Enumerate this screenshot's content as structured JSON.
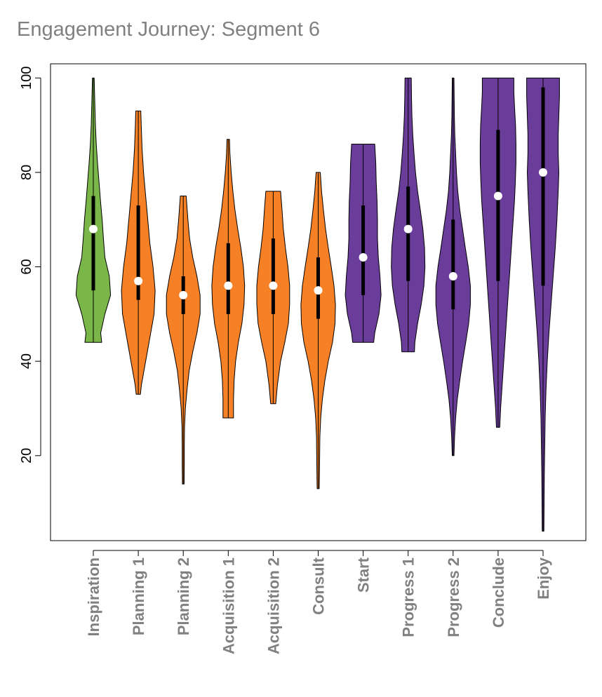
{
  "chart_data": {
    "type": "violin",
    "title": "Engagement Journey: Segment 6",
    "xlabel": "",
    "ylabel": "",
    "ylim": [
      2,
      103
    ],
    "yticks": [
      20,
      40,
      60,
      80,
      100
    ],
    "series": [
      {
        "name": "Inspiration",
        "color": "#7AB648",
        "min": 44,
        "q1": 55,
        "median": 68,
        "q3": 75,
        "max": 100,
        "density": [
          [
            44,
            0.4
          ],
          [
            46,
            0.35
          ],
          [
            50,
            0.55
          ],
          [
            54,
            0.82
          ],
          [
            58,
            0.76
          ],
          [
            62,
            0.55
          ],
          [
            66,
            0.48
          ],
          [
            70,
            0.42
          ],
          [
            74,
            0.34
          ],
          [
            78,
            0.27
          ],
          [
            82,
            0.2
          ],
          [
            86,
            0.14
          ],
          [
            90,
            0.1
          ],
          [
            95,
            0.07
          ],
          [
            100,
            0.04
          ]
        ]
      },
      {
        "name": "Planning 1",
        "color": "#F58025",
        "min": 33,
        "q1": 53,
        "median": 57,
        "q3": 73,
        "max": 93,
        "density": [
          [
            33,
            0.1
          ],
          [
            35,
            0.15
          ],
          [
            40,
            0.35
          ],
          [
            45,
            0.55
          ],
          [
            50,
            0.75
          ],
          [
            55,
            0.8
          ],
          [
            60,
            0.7
          ],
          [
            65,
            0.55
          ],
          [
            70,
            0.45
          ],
          [
            75,
            0.35
          ],
          [
            80,
            0.25
          ],
          [
            85,
            0.18
          ],
          [
            90,
            0.14
          ],
          [
            93,
            0.12
          ]
        ]
      },
      {
        "name": "Planning 2",
        "color": "#F58025",
        "min": 14,
        "q1": 50,
        "median": 54,
        "q3": 58,
        "max": 75,
        "density": [
          [
            14,
            0.04
          ],
          [
            18,
            0.05
          ],
          [
            22,
            0.05
          ],
          [
            26,
            0.06
          ],
          [
            30,
            0.1
          ],
          [
            34,
            0.18
          ],
          [
            38,
            0.28
          ],
          [
            42,
            0.45
          ],
          [
            46,
            0.65
          ],
          [
            50,
            0.8
          ],
          [
            54,
            0.8
          ],
          [
            58,
            0.65
          ],
          [
            62,
            0.45
          ],
          [
            66,
            0.3
          ],
          [
            70,
            0.22
          ],
          [
            75,
            0.14
          ]
        ]
      },
      {
        "name": "Acquisition 1",
        "color": "#F58025",
        "min": 28,
        "q1": 50,
        "median": 56,
        "q3": 65,
        "max": 87,
        "density": [
          [
            28,
            0.25
          ],
          [
            32,
            0.25
          ],
          [
            36,
            0.28
          ],
          [
            40,
            0.35
          ],
          [
            44,
            0.48
          ],
          [
            48,
            0.65
          ],
          [
            52,
            0.75
          ],
          [
            56,
            0.78
          ],
          [
            60,
            0.72
          ],
          [
            64,
            0.6
          ],
          [
            68,
            0.45
          ],
          [
            72,
            0.32
          ],
          [
            76,
            0.22
          ],
          [
            80,
            0.14
          ],
          [
            84,
            0.08
          ],
          [
            87,
            0.06
          ]
        ]
      },
      {
        "name": "Acquisition 2",
        "color": "#F58025",
        "min": 31,
        "q1": 50,
        "median": 56,
        "q3": 66,
        "max": 76,
        "density": [
          [
            31,
            0.12
          ],
          [
            35,
            0.2
          ],
          [
            40,
            0.35
          ],
          [
            44,
            0.55
          ],
          [
            48,
            0.72
          ],
          [
            52,
            0.78
          ],
          [
            56,
            0.78
          ],
          [
            60,
            0.7
          ],
          [
            64,
            0.58
          ],
          [
            68,
            0.48
          ],
          [
            72,
            0.42
          ],
          [
            76,
            0.35
          ]
        ]
      },
      {
        "name": "Consult",
        "color": "#F58025",
        "min": 13,
        "q1": 49,
        "median": 55,
        "q3": 62,
        "max": 80,
        "density": [
          [
            13,
            0.05
          ],
          [
            16,
            0.06
          ],
          [
            20,
            0.07
          ],
          [
            24,
            0.08
          ],
          [
            28,
            0.12
          ],
          [
            32,
            0.2
          ],
          [
            36,
            0.32
          ],
          [
            40,
            0.48
          ],
          [
            44,
            0.68
          ],
          [
            48,
            0.8
          ],
          [
            52,
            0.82
          ],
          [
            56,
            0.75
          ],
          [
            60,
            0.62
          ],
          [
            64,
            0.48
          ],
          [
            68,
            0.35
          ],
          [
            72,
            0.25
          ],
          [
            76,
            0.16
          ],
          [
            80,
            0.1
          ]
        ]
      },
      {
        "name": "Start",
        "color": "#6A3D9A",
        "min": 44,
        "q1": 54,
        "median": 62,
        "q3": 73,
        "max": 86,
        "density": [
          [
            44,
            0.5
          ],
          [
            46,
            0.55
          ],
          [
            50,
            0.75
          ],
          [
            54,
            0.85
          ],
          [
            58,
            0.8
          ],
          [
            62,
            0.72
          ],
          [
            66,
            0.68
          ],
          [
            70,
            0.68
          ],
          [
            74,
            0.66
          ],
          [
            78,
            0.62
          ],
          [
            82,
            0.6
          ],
          [
            86,
            0.55
          ]
        ]
      },
      {
        "name": "Progress 1",
        "color": "#6A3D9A",
        "min": 42,
        "q1": 57,
        "median": 68,
        "q3": 77,
        "max": 100,
        "density": [
          [
            42,
            0.3
          ],
          [
            44,
            0.32
          ],
          [
            48,
            0.45
          ],
          [
            52,
            0.62
          ],
          [
            56,
            0.75
          ],
          [
            60,
            0.8
          ],
          [
            64,
            0.78
          ],
          [
            68,
            0.7
          ],
          [
            72,
            0.58
          ],
          [
            76,
            0.45
          ],
          [
            80,
            0.35
          ],
          [
            84,
            0.28
          ],
          [
            88,
            0.22
          ],
          [
            92,
            0.18
          ],
          [
            96,
            0.16
          ],
          [
            100,
            0.15
          ]
        ]
      },
      {
        "name": "Progress 2",
        "color": "#6A3D9A",
        "min": 20,
        "q1": 51,
        "median": 58,
        "q3": 70,
        "max": 100,
        "density": [
          [
            20,
            0.04
          ],
          [
            24,
            0.07
          ],
          [
            28,
            0.12
          ],
          [
            32,
            0.2
          ],
          [
            36,
            0.32
          ],
          [
            40,
            0.45
          ],
          [
            44,
            0.6
          ],
          [
            48,
            0.74
          ],
          [
            52,
            0.82
          ],
          [
            56,
            0.82
          ],
          [
            60,
            0.72
          ],
          [
            64,
            0.58
          ],
          [
            68,
            0.45
          ],
          [
            72,
            0.32
          ],
          [
            76,
            0.22
          ],
          [
            80,
            0.16
          ],
          [
            84,
            0.12
          ],
          [
            88,
            0.08
          ],
          [
            92,
            0.06
          ],
          [
            96,
            0.05
          ],
          [
            100,
            0.04
          ]
        ]
      },
      {
        "name": "Conclude",
        "color": "#6A3D9A",
        "min": 26,
        "q1": 57,
        "median": 75,
        "q3": 89,
        "max": 100,
        "density": [
          [
            26,
            0.08
          ],
          [
            30,
            0.12
          ],
          [
            34,
            0.18
          ],
          [
            38,
            0.24
          ],
          [
            42,
            0.3
          ],
          [
            46,
            0.36
          ],
          [
            50,
            0.42
          ],
          [
            54,
            0.48
          ],
          [
            58,
            0.54
          ],
          [
            62,
            0.6
          ],
          [
            66,
            0.66
          ],
          [
            70,
            0.72
          ],
          [
            74,
            0.78
          ],
          [
            78,
            0.82
          ],
          [
            82,
            0.85
          ],
          [
            86,
            0.85
          ],
          [
            90,
            0.83
          ],
          [
            94,
            0.78
          ],
          [
            97,
            0.75
          ],
          [
            100,
            0.75
          ]
        ]
      },
      {
        "name": "Enjoy",
        "color": "#6A3D9A",
        "min": 4,
        "q1": 56,
        "median": 80,
        "q3": 98,
        "max": 100,
        "density": [
          [
            4,
            0.04
          ],
          [
            10,
            0.05
          ],
          [
            16,
            0.06
          ],
          [
            22,
            0.08
          ],
          [
            28,
            0.1
          ],
          [
            34,
            0.14
          ],
          [
            40,
            0.2
          ],
          [
            46,
            0.28
          ],
          [
            52,
            0.38
          ],
          [
            58,
            0.48
          ],
          [
            64,
            0.58
          ],
          [
            70,
            0.66
          ],
          [
            76,
            0.72
          ],
          [
            80,
            0.75
          ],
          [
            84,
            0.72
          ],
          [
            88,
            0.72
          ],
          [
            92,
            0.75
          ],
          [
            96,
            0.78
          ],
          [
            100,
            0.78
          ]
        ]
      }
    ]
  }
}
